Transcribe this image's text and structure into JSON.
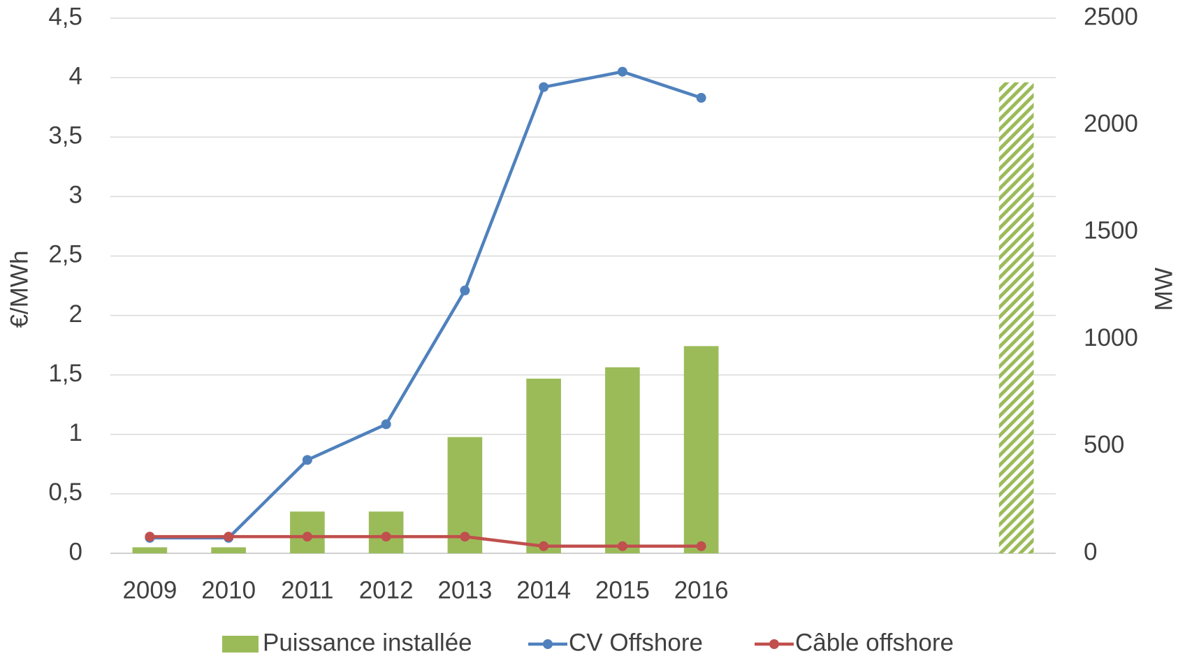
{
  "chart_data": {
    "type": "bar-line",
    "categories": [
      "2009",
      "2010",
      "2011",
      "2012",
      "2013",
      "2014",
      "2015",
      "2016",
      null,
      null,
      null,
      null
    ],
    "series": [
      {
        "name": "Puissance installée",
        "type": "bar",
        "axis": "y2",
        "color": "#9bbb59",
        "values": [
          28,
          28,
          195,
          195,
          543,
          816,
          869,
          968,
          null,
          null,
          null,
          2200
        ],
        "styles": [
          "solid",
          "solid",
          "solid",
          "solid",
          "solid",
          "solid",
          "solid",
          "solid",
          null,
          null,
          null,
          "hatched"
        ]
      },
      {
        "name": "CV Offshore",
        "type": "line",
        "color": "#4f81bd",
        "values": [
          0.13,
          0.13,
          0.785,
          1.085,
          2.21,
          3.92,
          4.05,
          3.83,
          null,
          null,
          null,
          null
        ]
      },
      {
        "name": "Câble offshore",
        "type": "line",
        "color": "#c0504d",
        "values": [
          0.14,
          0.14,
          0.14,
          0.14,
          0.14,
          0.06,
          0.06,
          0.06,
          null,
          null,
          null,
          null
        ]
      }
    ],
    "ylabel": "€/MWh",
    "y2label": "MW",
    "ylim": [
      0,
      4.5
    ],
    "yticks": [
      0,
      {
        "value": 0.5,
        "label": "0,5"
      },
      1,
      {
        "value": 1.5,
        "label": "1,5"
      },
      2,
      {
        "value": 2.5,
        "label": "2,5"
      },
      3,
      {
        "value": 3.5,
        "label": "3,5"
      },
      4,
      {
        "value": 4.5,
        "label": "4,5"
      }
    ],
    "y2lim": [
      0,
      2500
    ],
    "y2ticks": [
      0,
      500,
      1000,
      1500,
      2000,
      2500
    ],
    "grid": true,
    "legend": "bottom"
  }
}
